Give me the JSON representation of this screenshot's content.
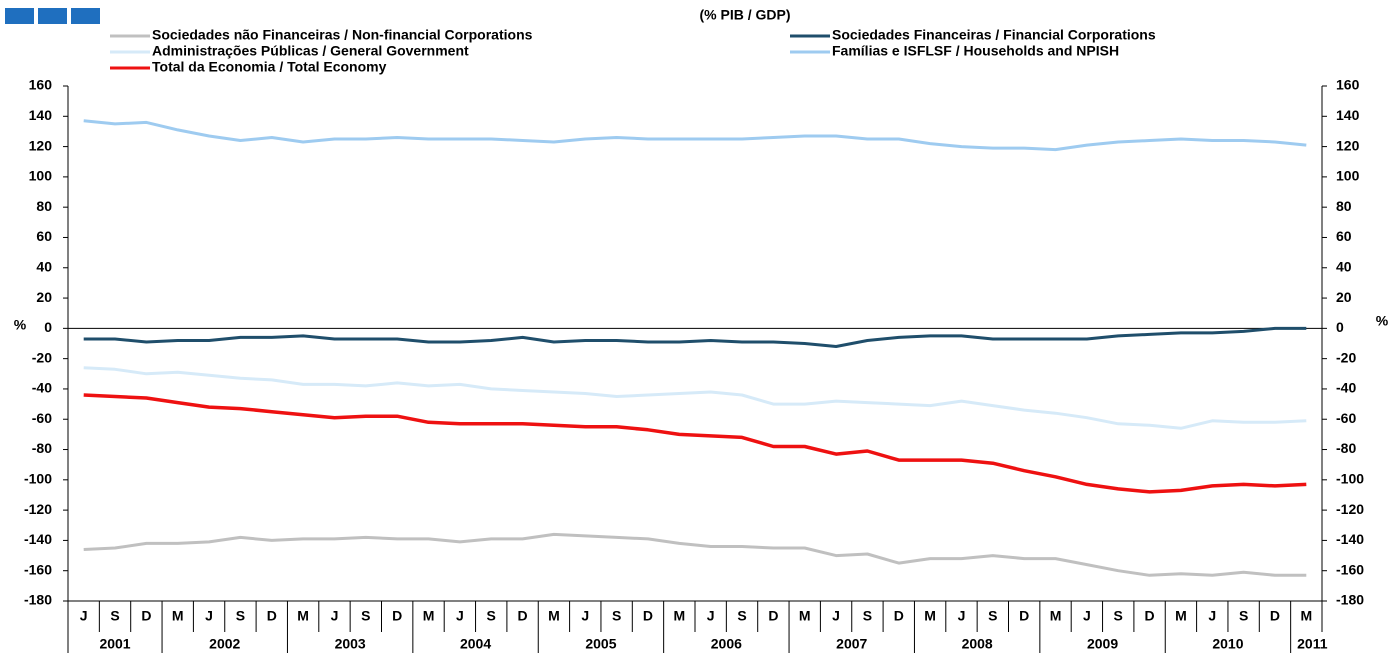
{
  "chart_data": {
    "type": "line",
    "subtitle": "(% PIB / GDP)",
    "y_axis_label": "%",
    "categories": [
      "J",
      "S",
      "D",
      "M",
      "J",
      "S",
      "D",
      "M",
      "J",
      "S",
      "D",
      "M",
      "J",
      "S",
      "D",
      "M",
      "J",
      "S",
      "D",
      "M",
      "J",
      "S",
      "D",
      "M",
      "J",
      "S",
      "D",
      "M",
      "J",
      "S",
      "D",
      "M",
      "J",
      "S",
      "D",
      "M",
      "J",
      "S",
      "D",
      "M"
    ],
    "years": [
      2001,
      2002,
      2003,
      2004,
      2005,
      2006,
      2007,
      2008,
      2009,
      2010,
      2011
    ],
    "ylim": [
      -180,
      160
    ],
    "yticks": [
      160,
      140,
      120,
      100,
      80,
      60,
      40,
      20,
      0,
      -20,
      -40,
      -60,
      -80,
      -100,
      -120,
      -140,
      -160,
      -180
    ],
    "series": [
      {
        "name": "Sociedades não Financeiras / Non-financial Corporations",
        "color": "#c0c0c0",
        "values": [
          -146,
          -145,
          -142,
          -142,
          -141,
          -138,
          -140,
          -139,
          -139,
          -138,
          -139,
          -139,
          -141,
          -139,
          -139,
          -136,
          -137,
          -138,
          -139,
          -142,
          -144,
          -144,
          -145,
          -145,
          -150,
          -149,
          -155,
          -152,
          -152,
          -150,
          -152,
          -152,
          -156,
          -160,
          -163,
          -162,
          -163,
          -161,
          -163,
          -163
        ]
      },
      {
        "name": "Sociedades Financeiras / Financial Corporations",
        "color": "#1f4e6b",
        "values": [
          -7,
          -7,
          -9,
          -8,
          -8,
          -6,
          -6,
          -5,
          -7,
          -7,
          -7,
          -9,
          -9,
          -8,
          -6,
          -9,
          -8,
          -8,
          -9,
          -9,
          -8,
          -9,
          -9,
          -10,
          -12,
          -8,
          -6,
          -5,
          -5,
          -7,
          -7,
          -7,
          -7,
          -5,
          -4,
          -3,
          -3,
          -2,
          0,
          0
        ]
      },
      {
        "name": "Administrações Públicas / General Government",
        "color": "#d6eaf8",
        "values": [
          -26,
          -27,
          -30,
          -29,
          -31,
          -33,
          -34,
          -37,
          -37,
          -38,
          -36,
          -38,
          -37,
          -40,
          -41,
          -42,
          -43,
          -45,
          -44,
          -43,
          -42,
          -44,
          -50,
          -50,
          -48,
          -49,
          -50,
          -51,
          -48,
          -51,
          -54,
          -56,
          -59,
          -63,
          -64,
          -66,
          -61,
          -62,
          -62,
          -61
        ]
      },
      {
        "name": "Famílias e ISFLSF / Households and NPISH",
        "color": "#9ecbf0",
        "values": [
          137,
          135,
          136,
          131,
          127,
          124,
          126,
          123,
          125,
          125,
          126,
          125,
          125,
          125,
          124,
          123,
          125,
          126,
          125,
          125,
          125,
          125,
          126,
          127,
          127,
          125,
          125,
          122,
          120,
          119,
          119,
          118,
          121,
          123,
          124,
          125,
          124,
          124,
          123,
          121
        ]
      },
      {
        "name": "Total da Economia / Total Economy",
        "color": "#ee1111",
        "values": [
          -44,
          -45,
          -46,
          -49,
          -52,
          -53,
          -55,
          -57,
          -59,
          -58,
          -58,
          -62,
          -63,
          -63,
          -63,
          -64,
          -65,
          -65,
          -67,
          -70,
          -71,
          -72,
          -78,
          -78,
          -83,
          -81,
          -87,
          -87,
          -87,
          -89,
          -94,
          -98,
          -103,
          -106,
          -108,
          -107,
          -104,
          -103,
          -104,
          -103
        ]
      }
    ]
  }
}
